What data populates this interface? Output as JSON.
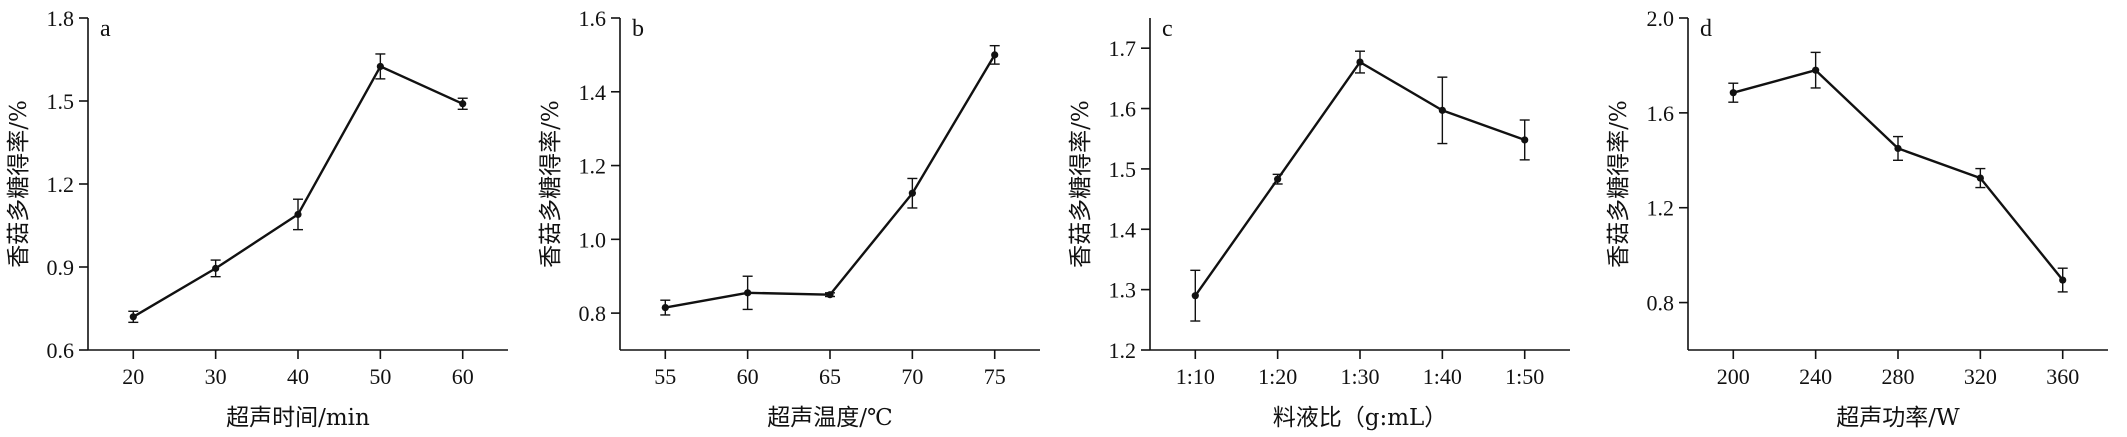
{
  "chart_data": [
    {
      "type": "line",
      "panel_label": "a",
      "xlabel": "超声时间/min",
      "ylabel": "香菇多糖得率/%",
      "x": [
        20,
        30,
        40,
        50,
        60
      ],
      "x_tick_labels": [
        "20",
        "30",
        "40",
        "50",
        "60"
      ],
      "values": [
        0.72,
        0.895,
        1.09,
        1.625,
        1.49
      ],
      "errors": [
        0.02,
        0.03,
        0.055,
        0.045,
        0.02
      ],
      "y_ticks": [
        0.6,
        0.9,
        1.2,
        1.5,
        1.8
      ],
      "y_tick_labels": [
        "0.6",
        "0.9",
        "1.2",
        "1.5",
        "1.8"
      ],
      "ylim": [
        0.6,
        1.8
      ],
      "grid": false
    },
    {
      "type": "line",
      "panel_label": "b",
      "xlabel": "超声温度/℃",
      "ylabel": "香菇多糖得率/%",
      "x": [
        55,
        60,
        65,
        70,
        75
      ],
      "x_tick_labels": [
        "55",
        "60",
        "65",
        "70",
        "75"
      ],
      "values": [
        0.815,
        0.855,
        0.85,
        1.125,
        1.5
      ],
      "errors": [
        0.02,
        0.045,
        0.005,
        0.04,
        0.025
      ],
      "y_ticks": [
        0.8,
        1.0,
        1.2,
        1.4,
        1.6
      ],
      "y_tick_labels": [
        "0.8",
        "1.0",
        "1.2",
        "1.4",
        "1.6"
      ],
      "ylim": [
        0.7,
        1.6
      ],
      "grid": false
    },
    {
      "type": "line",
      "panel_label": "c",
      "xlabel": "料液比（g:mL）",
      "ylabel": "香菇多糖得率/%",
      "x": [
        1,
        2,
        3,
        4,
        5
      ],
      "x_tick_labels": [
        "1:10",
        "1:20",
        "1:30",
        "1:40",
        "1:50"
      ],
      "values": [
        1.29,
        1.483,
        1.677,
        1.597,
        1.548
      ],
      "errors": [
        0.042,
        0.008,
        0.018,
        0.055,
        0.033
      ],
      "y_ticks": [
        1.2,
        1.3,
        1.4,
        1.5,
        1.6,
        1.7
      ],
      "y_tick_labels": [
        "1.2",
        "1.3",
        "1.4",
        "1.5",
        "1.6",
        "1.7"
      ],
      "ylim": [
        1.2,
        1.75
      ],
      "grid": false
    },
    {
      "type": "line",
      "panel_label": "d",
      "xlabel": "超声功率/W",
      "ylabel": "香菇多糖得率/%",
      "x": [
        200,
        240,
        280,
        320,
        360
      ],
      "x_tick_labels": [
        "200",
        "240",
        "280",
        "320",
        "360"
      ],
      "values": [
        1.685,
        1.78,
        1.45,
        1.325,
        0.895
      ],
      "errors": [
        0.04,
        0.075,
        0.05,
        0.04,
        0.05
      ],
      "y_ticks": [
        0.8,
        1.2,
        1.6,
        2.0
      ],
      "y_tick_labels": [
        "0.8",
        "1.2",
        "1.6",
        "2.0"
      ],
      "ylim": [
        0.6,
        2.0
      ],
      "grid": false
    }
  ]
}
